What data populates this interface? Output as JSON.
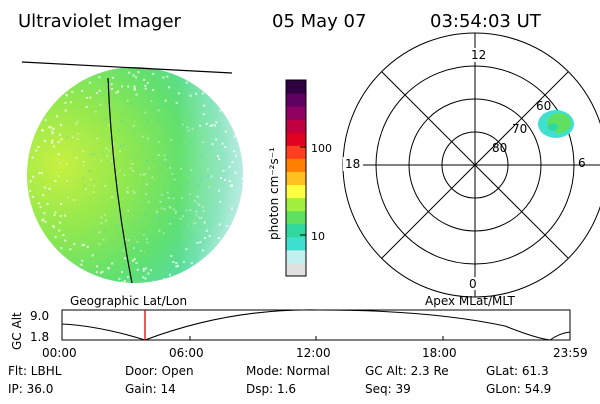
{
  "header": {
    "instrument": "Ultraviolet Imager",
    "date": "05 May 07",
    "time": "03:54:03 UT"
  },
  "colorbar": {
    "label": "photon cm⁻²s⁻¹",
    "ticks": [
      "100",
      "10"
    ],
    "colors": [
      "#e0e0e0",
      "#c0f0f0",
      "#40e0d0",
      "#30d8a0",
      "#60e060",
      "#a0f040",
      "#ffff40",
      "#ffc020",
      "#ff8000",
      "#ff4020",
      "#e00020",
      "#c00040",
      "#900060",
      "#600060",
      "#300040"
    ]
  },
  "polar_plot": {
    "title": "Apex MLat/MLT",
    "mlt_labels": [
      "12",
      "18",
      "6",
      "0"
    ],
    "lat_labels": [
      "60",
      "70",
      "80"
    ],
    "blob_color": "#60e060"
  },
  "geo_panel": {
    "title": "Geographic Lat/Lon"
  },
  "altitude_plot": {
    "ylabel": "GC Alt",
    "yticks": [
      "9.0",
      "1.8"
    ],
    "xticks": [
      "00:00",
      "06:00",
      "12:00",
      "18:00",
      "23:59"
    ],
    "marker_color": "#e00000"
  },
  "status": {
    "flt": "Flt: LBHL",
    "ip": "IP: 36.0",
    "door": "Door: Open",
    "gain": "Gain: 14",
    "mode": "Mode: Normal",
    "dsp": "Dsp:    1.6",
    "gc_alt": "GC Alt: 2.3 Re",
    "seq": "Seq: 39",
    "glat": "GLat:  61.3",
    "glon": "GLon:  54.9"
  }
}
